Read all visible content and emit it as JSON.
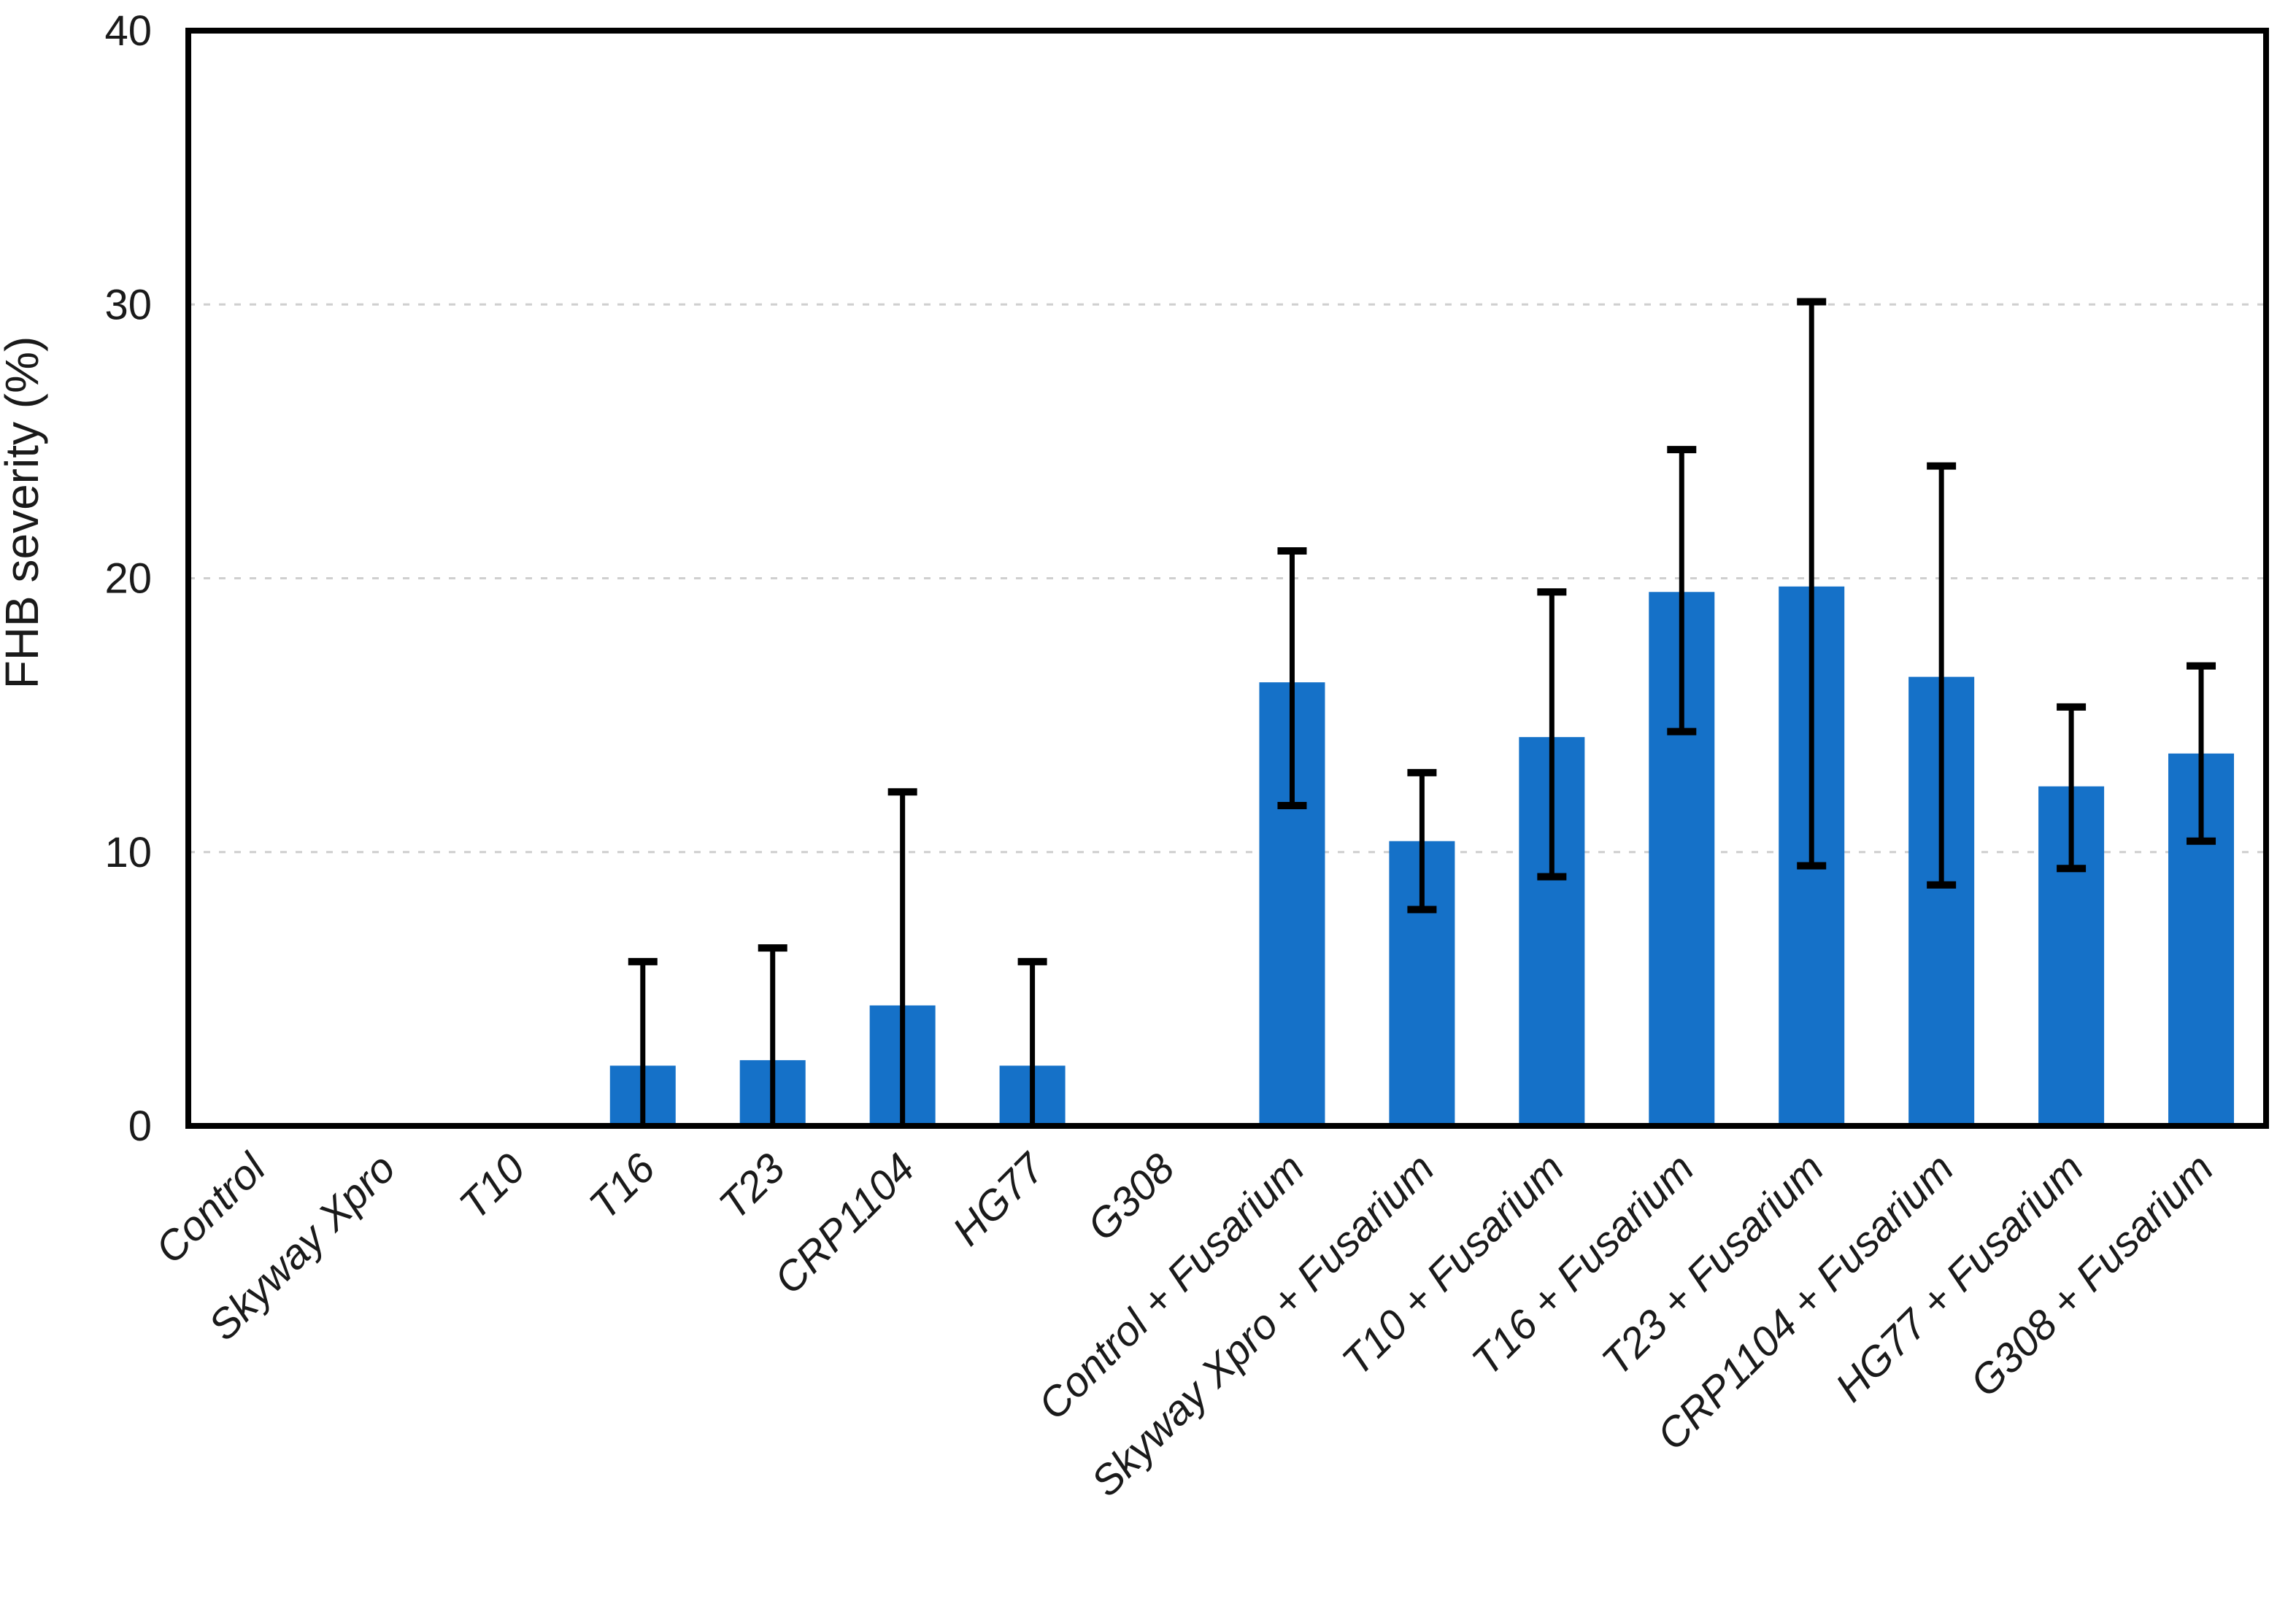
{
  "figure": {
    "background": "#ffffff",
    "text_color": "#1a1a1a"
  },
  "chart_data": {
    "type": "bar",
    "title": "",
    "xlabel": "",
    "ylabel": "FHB severity (%)",
    "ylim": [
      0,
      40
    ],
    "yticks": [
      0,
      10,
      20,
      30,
      40
    ],
    "gridlines": [
      10,
      20,
      30
    ],
    "grid_on": true,
    "legend": "none",
    "bar_color": "#1571C8",
    "grid_color": "#cfcfcf",
    "frame_color": "#000000",
    "error_bar_color": "#000000",
    "categories": [
      "Control",
      "Skyway Xpro",
      "T10",
      "T16",
      "T23",
      "CRP1104",
      "HG77",
      "G308",
      "Control + Fusarium",
      "Skyway Xpro + Fusarium",
      "T10 + Fusarium",
      "T16 + Fusarium",
      "T23 + Fusarium",
      "CRP1104 + Fusarium",
      "HG77 + Fusarium",
      "G308 + Fusarium"
    ],
    "values": [
      0,
      0,
      0,
      2.2,
      2.4,
      4.4,
      2.2,
      0,
      16.2,
      10.4,
      14.2,
      19.5,
      19.7,
      16.4,
      12.4,
      13.6
    ],
    "error_upper": [
      null,
      null,
      null,
      6.0,
      6.5,
      12.2,
      6.0,
      null,
      21.0,
      12.9,
      19.5,
      24.7,
      30.1,
      24.1,
      15.3,
      16.8
    ],
    "error_lower": [
      null,
      null,
      null,
      null,
      null,
      null,
      null,
      null,
      11.7,
      7.9,
      9.1,
      14.4,
      9.5,
      8.8,
      9.4,
      10.4
    ],
    "error_lower_note": "null lower bound with non-null upper bound = whisker clipped at baseline 0, no bottom cap"
  }
}
